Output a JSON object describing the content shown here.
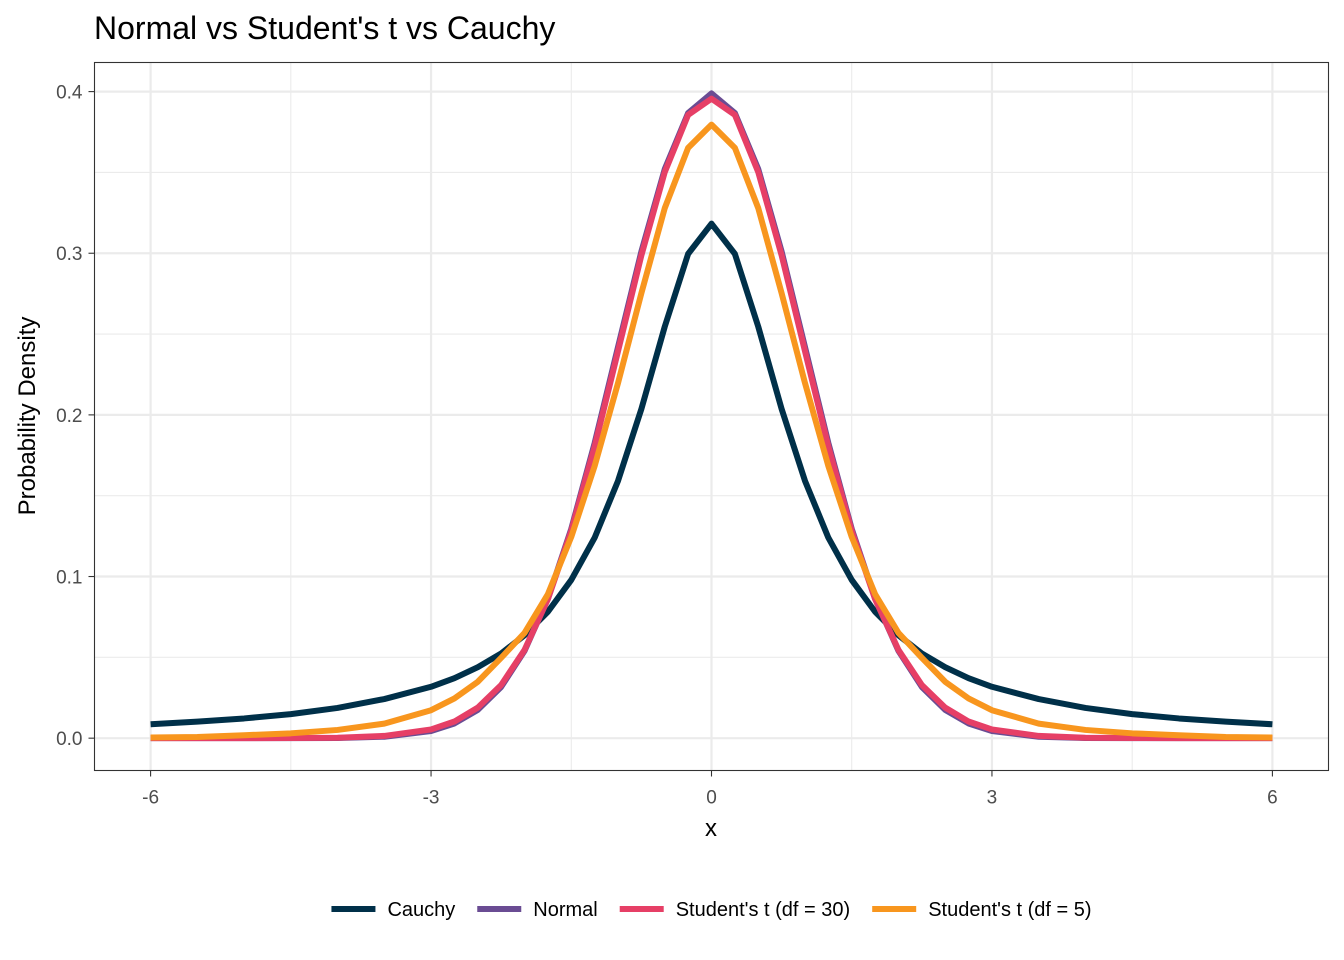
{
  "chart_data": {
    "type": "line",
    "title": "Normal vs Student's t vs Cauchy",
    "xlabel": "x",
    "ylabel": "Probability Density",
    "xlim": [
      -6.6,
      6.6
    ],
    "ylim": [
      -0.02,
      0.418
    ],
    "x_ticks": [
      -6,
      -3,
      0,
      3,
      6
    ],
    "x_tick_labels": [
      "-6",
      "-3",
      "0",
      "3",
      "6"
    ],
    "y_ticks": [
      0.0,
      0.1,
      0.2,
      0.3,
      0.4
    ],
    "y_tick_labels": [
      "0.0",
      "0.1",
      "0.2",
      "0.3",
      "0.4"
    ],
    "x_minor": [
      -4.5,
      -1.5,
      1.5,
      4.5
    ],
    "y_minor": [
      0.05,
      0.15,
      0.25,
      0.35
    ],
    "grid": true,
    "legend_position": "bottom",
    "x": [
      -6,
      -5.5,
      -5,
      -4.5,
      -4,
      -3.5,
      -3,
      -2.75,
      -2.5,
      -2.25,
      -2,
      -1.75,
      -1.5,
      -1.25,
      -1,
      -0.75,
      -0.5,
      -0.25,
      0,
      0.25,
      0.5,
      0.75,
      1,
      1.25,
      1.5,
      1.75,
      2,
      2.25,
      2.5,
      2.75,
      3,
      3.5,
      4,
      4.5,
      5,
      5.5,
      6
    ],
    "series": [
      {
        "name": "Cauchy",
        "color": "#003049",
        "values": [
          0.0086,
          0.0102,
          0.0122,
          0.0149,
          0.0187,
          0.0242,
          0.0318,
          0.0371,
          0.0439,
          0.0524,
          0.0637,
          0.0782,
          0.0979,
          0.124,
          0.1592,
          0.2037,
          0.2546,
          0.2996,
          0.3183,
          0.2996,
          0.2546,
          0.2037,
          0.1592,
          0.124,
          0.0979,
          0.0782,
          0.0637,
          0.0524,
          0.0439,
          0.0371,
          0.0318,
          0.0242,
          0.0187,
          0.0149,
          0.0122,
          0.0102,
          0.0086
        ]
      },
      {
        "name": "Normal",
        "color": "#6a4c93",
        "values": [
          0.0,
          0.0,
          0.0,
          0.0,
          0.0001,
          0.0009,
          0.0044,
          0.0091,
          0.0175,
          0.0317,
          0.054,
          0.0863,
          0.1295,
          0.1826,
          0.242,
          0.3011,
          0.3521,
          0.3867,
          0.3989,
          0.3867,
          0.3521,
          0.3011,
          0.242,
          0.1826,
          0.1295,
          0.0863,
          0.054,
          0.0317,
          0.0175,
          0.0091,
          0.0044,
          0.0009,
          0.0001,
          0.0,
          0.0,
          0.0,
          0.0
        ]
      },
      {
        "name": "Student's t (df = 30)",
        "color": "#e63f66",
        "values": [
          0.0,
          0.0,
          0.0,
          0.0001,
          0.0003,
          0.0014,
          0.0054,
          0.0103,
          0.0189,
          0.0329,
          0.0546,
          0.086,
          0.1282,
          0.1804,
          0.2394,
          0.2987,
          0.3502,
          0.3856,
          0.3956,
          0.3856,
          0.3502,
          0.2987,
          0.2394,
          0.1804,
          0.1282,
          0.086,
          0.0546,
          0.0329,
          0.0189,
          0.0103,
          0.0054,
          0.0014,
          0.0003,
          0.0001,
          0.0,
          0.0,
          0.0
        ]
      },
      {
        "name": "Student's t (df = 5)",
        "color": "#f8961e",
        "values": [
          0.0004,
          0.0007,
          0.0018,
          0.003,
          0.0051,
          0.009,
          0.0173,
          0.0246,
          0.0349,
          0.0497,
          0.0651,
          0.0891,
          0.1245,
          0.1683,
          0.2197,
          0.2753,
          0.3279,
          0.3652,
          0.3796,
          0.3652,
          0.3279,
          0.2753,
          0.2197,
          0.1683,
          0.1245,
          0.0891,
          0.0651,
          0.0497,
          0.0349,
          0.0246,
          0.0173,
          0.009,
          0.0051,
          0.003,
          0.0018,
          0.0007,
          0.0004
        ]
      }
    ]
  }
}
